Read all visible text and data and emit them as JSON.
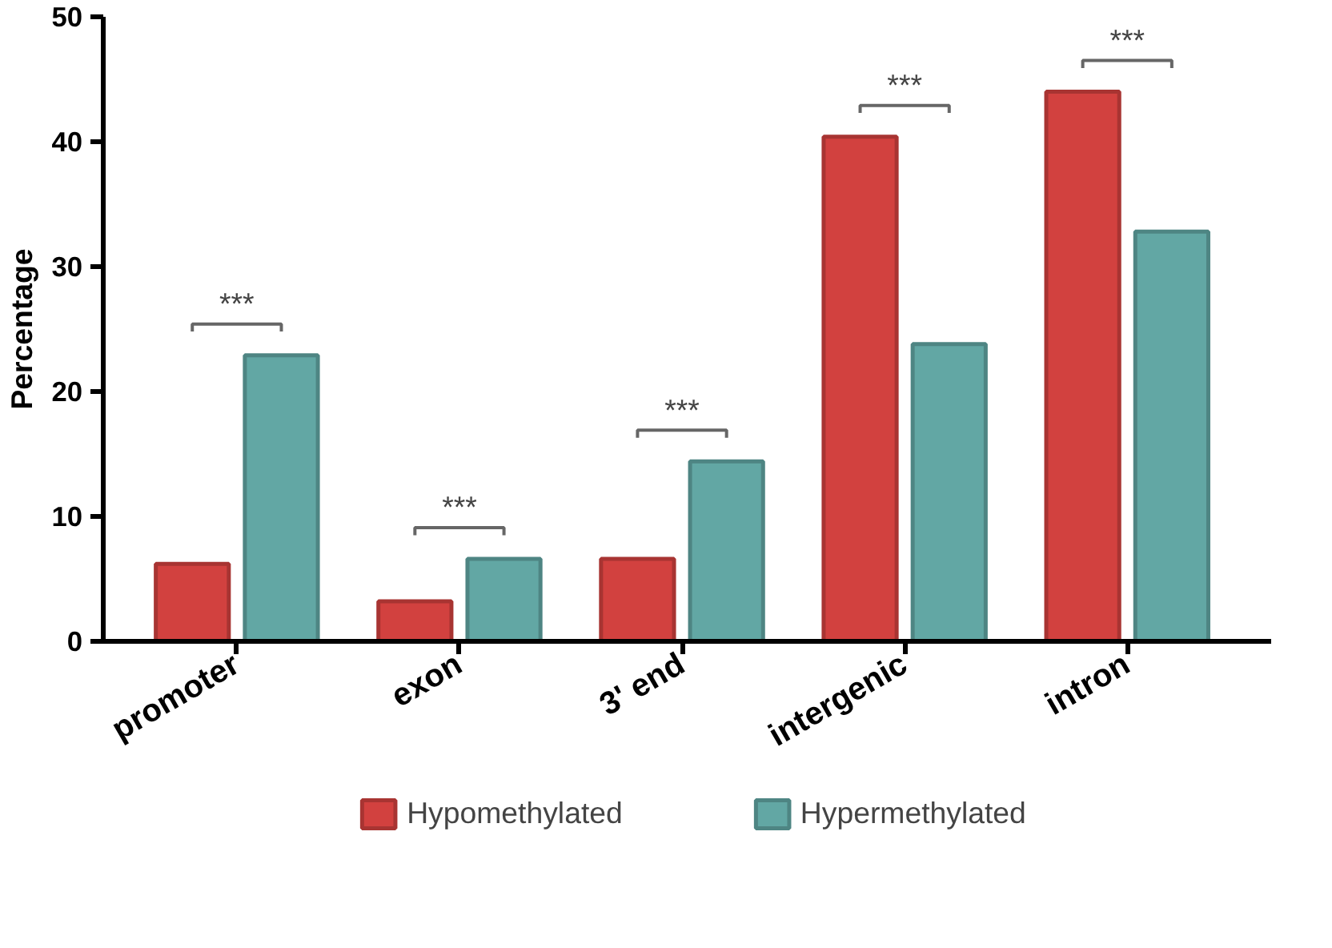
{
  "chart_data": {
    "type": "bar",
    "ylabel": "Percentage",
    "categories": [
      "promoter",
      "exon",
      "3' end",
      "intergenic",
      "intron"
    ],
    "series": [
      {
        "name": "Hypomethylated",
        "color": "#d2413f",
        "values": [
          6.2,
          3.2,
          6.6,
          40.4,
          44.0
        ]
      },
      {
        "name": "Hypermethylated",
        "color": "#62a7a4",
        "values": [
          22.9,
          6.6,
          14.4,
          23.8,
          32.8
        ]
      }
    ],
    "ylim": [
      0,
      50
    ],
    "yticks": [
      0,
      10,
      20,
      30,
      40,
      50
    ],
    "grid": false,
    "legend": "bottom",
    "annotations": [
      "***",
      "***",
      "***",
      "***",
      "***"
    ]
  }
}
